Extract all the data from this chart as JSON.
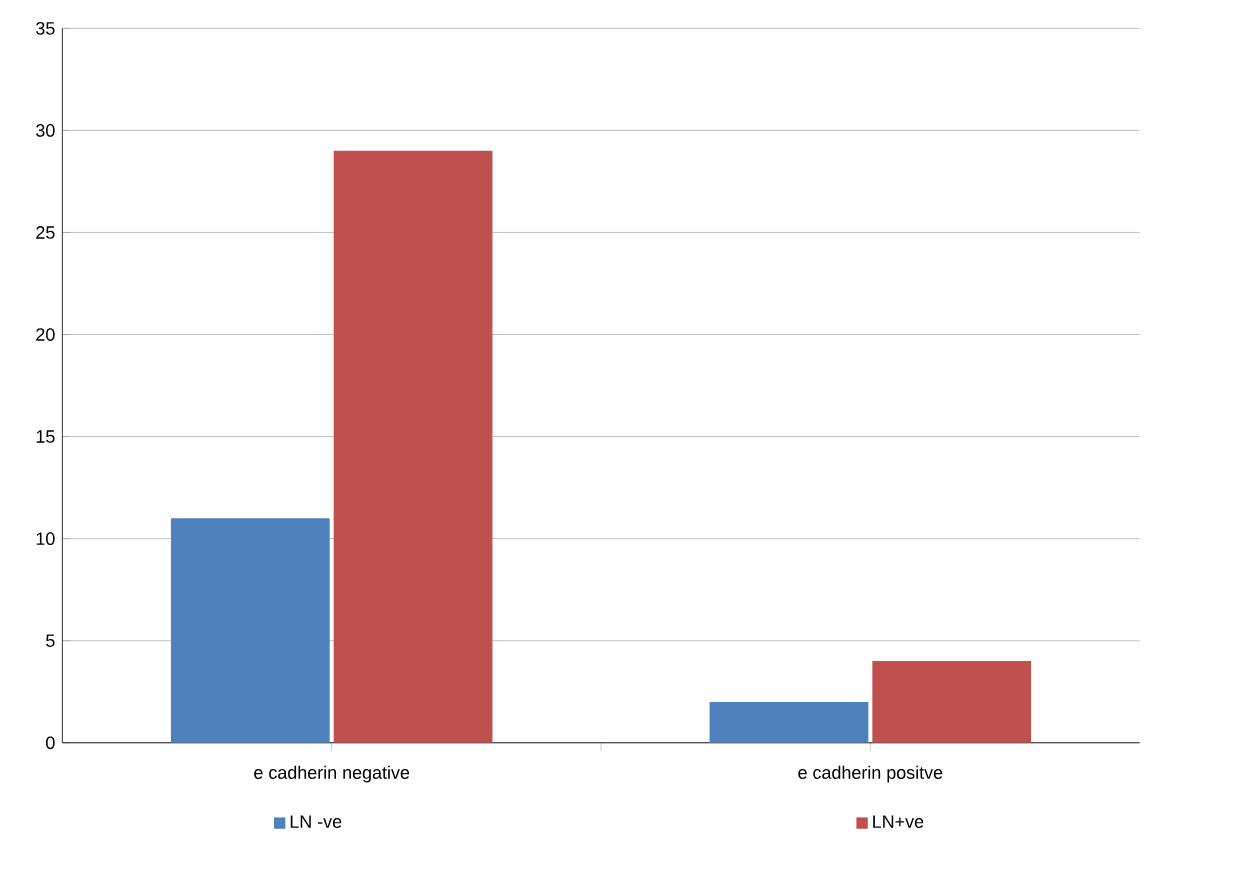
{
  "chart_data": {
    "type": "bar",
    "categories": [
      "e cadherin negative",
      "e cadherin positve"
    ],
    "series": [
      {
        "name": "LN -ve",
        "color": "#4f81bd",
        "values": [
          11,
          2
        ]
      },
      {
        "name": "LN+ve",
        "color": "#c0504d",
        "values": [
          29,
          4
        ]
      }
    ],
    "ylim": [
      0,
      35
    ],
    "yticks": [
      0,
      5,
      10,
      15,
      20,
      25,
      30,
      35
    ],
    "grid": "y",
    "legend": "bottom"
  }
}
